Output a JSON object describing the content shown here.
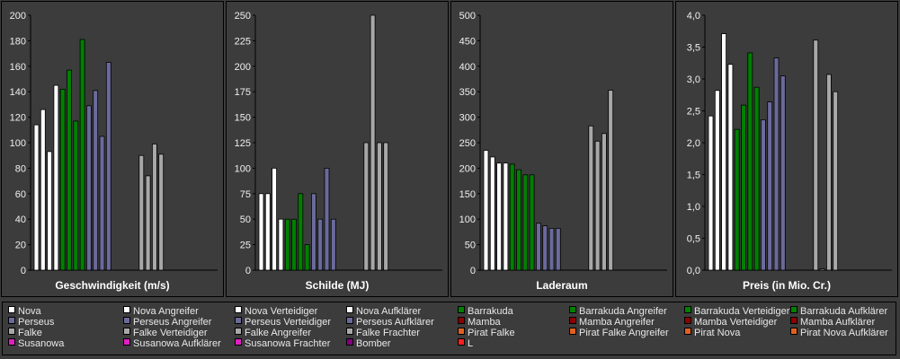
{
  "chart_data": [
    {
      "type": "bar",
      "title": "Geschwindigkeit (m/s)",
      "ylim": [
        0,
        200
      ],
      "yticks": [
        "0",
        "20",
        "40",
        "60",
        "80",
        "100",
        "120",
        "140",
        "160",
        "180",
        "200"
      ],
      "values": [
        114,
        126,
        93,
        145,
        142,
        157,
        117,
        181,
        129,
        141,
        105,
        163,
        null,
        null,
        null,
        null,
        90,
        74,
        99,
        91
      ]
    },
    {
      "type": "bar",
      "title": "Schilde (MJ)",
      "ylim": [
        0,
        250
      ],
      "yticks": [
        "0",
        "25",
        "50",
        "75",
        "100",
        "125",
        "150",
        "175",
        "200",
        "225",
        "250"
      ],
      "values": [
        75,
        75,
        100,
        50,
        50,
        50,
        75,
        25,
        75,
        50,
        100,
        50,
        null,
        null,
        null,
        null,
        125,
        250,
        125,
        125
      ]
    },
    {
      "type": "bar",
      "title": "Laderaum",
      "ylim": [
        0,
        500
      ],
      "yticks": [
        "0",
        "50",
        "100",
        "150",
        "200",
        "250",
        "300",
        "350",
        "400",
        "450",
        "500"
      ],
      "values": [
        235,
        222,
        210,
        210,
        208,
        197,
        187,
        187,
        92,
        87,
        82,
        82,
        null,
        null,
        null,
        null,
        283,
        253,
        268,
        353
      ]
    },
    {
      "type": "bar",
      "title": "Preis (in Mio. Cr.)",
      "ylim": [
        0,
        4
      ],
      "yticks": [
        "0,0",
        "0,5",
        "1,0",
        "1,5",
        "2,0",
        "2,5",
        "3,0",
        "3,5",
        "4,0"
      ],
      "values": [
        2.42,
        2.82,
        3.71,
        3.23,
        2.21,
        2.59,
        3.41,
        2.87,
        2.36,
        2.64,
        3.33,
        3.05,
        null,
        null,
        null,
        null,
        3.61,
        0.02,
        3.07,
        2.8
      ]
    }
  ],
  "bar_colors": [
    "#ffffff",
    "#ffffff",
    "#ffffff",
    "#ffffff",
    "#008000",
    "#008000",
    "#008000",
    "#008000",
    "#6a6a9c",
    "#6a6a9c",
    "#6a6a9c",
    "#6a6a9c",
    "#555555",
    "#555555",
    "#555555",
    "#555555",
    "#a8a8a8",
    "#a8a8a8",
    "#a8a8a8",
    "#a8a8a8"
  ],
  "legend": [
    {
      "label": "Nova",
      "color": "#ffffff"
    },
    {
      "label": "Nova Angreifer",
      "color": "#ffffff"
    },
    {
      "label": "Nova Verteidiger",
      "color": "#ffffff"
    },
    {
      "label": "Nova Aufklärer",
      "color": "#ffffff"
    },
    {
      "label": "Barrakuda",
      "color": "#008000"
    },
    {
      "label": "Barrakuda Angreifer",
      "color": "#008000"
    },
    {
      "label": "Barrakuda Verteidiger",
      "color": "#008000"
    },
    {
      "label": "Barrakuda Aufklärer",
      "color": "#008000"
    },
    {
      "label": "Perseus",
      "color": "#6a6a9c"
    },
    {
      "label": "Perseus Angreifer",
      "color": "#6a6a9c"
    },
    {
      "label": "Perseus Verteidiger",
      "color": "#6a6a9c"
    },
    {
      "label": "Perseus Aufklärer",
      "color": "#6a6a9c"
    },
    {
      "label": "Mamba",
      "color": "#8b0000"
    },
    {
      "label": "Mamba Angreifer",
      "color": "#8b0000"
    },
    {
      "label": "Mamba Verteidiger",
      "color": "#8b0000"
    },
    {
      "label": "Mamba Aufklärer",
      "color": "#8b0000"
    },
    {
      "label": "Falke",
      "color": "#a8a8a8"
    },
    {
      "label": "Falke Verteidiger",
      "color": "#a8a8a8"
    },
    {
      "label": "Falke Angreifer",
      "color": "#a8a8a8"
    },
    {
      "label": "Falke Frachter",
      "color": "#a8a8a8"
    },
    {
      "label": "Pirat Falke",
      "color": "#e06020"
    },
    {
      "label": "Pirat Falke Angreifer",
      "color": "#e06020"
    },
    {
      "label": "Pirat Nova",
      "color": "#e06020"
    },
    {
      "label": "Pirat Nova Aufklärer",
      "color": "#e06020"
    },
    {
      "label": "Susanowa",
      "color": "#e020c0"
    },
    {
      "label": "Susanowa Aufklärer",
      "color": "#e020c0"
    },
    {
      "label": "Susanowa Frachter",
      "color": "#e020c0"
    },
    {
      "label": "Bomber",
      "color": "#800080"
    },
    {
      "label": "L",
      "color": "#ff2020"
    }
  ]
}
